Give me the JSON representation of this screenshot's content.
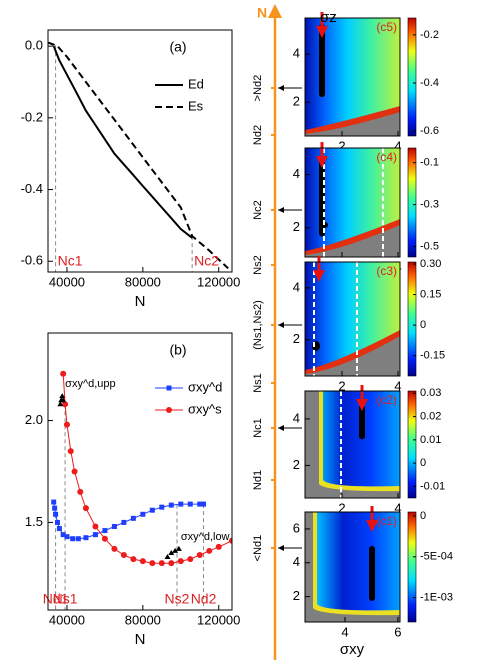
{
  "chart_data": [
    {
      "type": "line",
      "title": "(a)",
      "xlabel": "N",
      "xlim": [
        30000,
        127000
      ],
      "ylim": [
        -0.63,
        0.045
      ],
      "xticks": [
        40000,
        80000,
        120000
      ],
      "yticks": [
        {
          "value": 0,
          "label": "0.0"
        },
        -0.2,
        -0.4,
        -0.6
      ],
      "series": [
        {
          "name": "Ed",
          "color": "#000000",
          "line_style": "solid",
          "x": [
            33000,
            36000,
            40000,
            45000,
            50000,
            55000,
            60000,
            65000,
            70000,
            75000,
            80000,
            85000,
            90000,
            95000,
            100000,
            106000
          ],
          "values": [
            0,
            -0.04,
            -0.08,
            -0.13,
            -0.18,
            -0.22,
            -0.26,
            -0.3,
            -0.33,
            -0.36,
            -0.39,
            -0.42,
            -0.45,
            -0.48,
            -0.51,
            -0.535
          ]
        },
        {
          "name": "Es",
          "color": "#000000",
          "line_style": "dashed",
          "x": [
            30000,
            35000,
            40000,
            50000,
            60000,
            70000,
            80000,
            90000,
            100000,
            106000,
            115000,
            125000
          ],
          "values": [
            0.01,
            0,
            -0.03,
            -0.1,
            -0.17,
            -0.24,
            -0.31,
            -0.38,
            -0.45,
            -0.53,
            -0.57,
            -0.62
          ]
        }
      ],
      "vlines": [
        {
          "x": 34000,
          "label": "Nc1"
        },
        {
          "x": 106000,
          "label": "Nc2"
        }
      ]
    },
    {
      "type": "line",
      "title": "(b)",
      "xlabel": "N",
      "xlim": [
        30000,
        127000
      ],
      "ylim": [
        1.07,
        2.43
      ],
      "xticks": [
        40000,
        80000,
        120000
      ],
      "yticks": [
        1.5,
        {
          "value": 2,
          "label": "2.0"
        }
      ],
      "series": [
        {
          "name": "σxy^d",
          "color": "#1f3fff",
          "marker": "square",
          "x": [
            33000,
            33500,
            34000,
            35000,
            36000,
            38000,
            40000,
            43000,
            46000,
            50000,
            55000,
            60000,
            65000,
            70000,
            75000,
            80000,
            85000,
            90000,
            95000,
            100000,
            105000,
            110000,
            112000
          ],
          "values": [
            1.6,
            1.57,
            1.54,
            1.5,
            1.47,
            1.44,
            1.43,
            1.42,
            1.42,
            1.425,
            1.44,
            1.46,
            1.48,
            1.5,
            1.52,
            1.54,
            1.56,
            1.575,
            1.585,
            1.59,
            1.59,
            1.59,
            1.59
          ]
        },
        {
          "name": "σxy^s",
          "color": "#ee1c1c",
          "marker": "circle",
          "x": [
            38000,
            39000,
            40000,
            42000,
            44000,
            47000,
            50000,
            55000,
            60000,
            65000,
            70000,
            75000,
            80000,
            85000,
            90000,
            95000,
            100000,
            105000,
            110000,
            115000,
            120000,
            127000
          ],
          "values": [
            2.23,
            2.08,
            1.98,
            1.85,
            1.75,
            1.65,
            1.57,
            1.48,
            1.42,
            1.37,
            1.34,
            1.32,
            1.31,
            1.3,
            1.3,
            1.3,
            1.31,
            1.32,
            1.34,
            1.36,
            1.38,
            1.41
          ]
        }
      ],
      "triangle_points": [
        {
          "label": "σxy^d,upp",
          "x": [
            36500,
            37000,
            37500,
            38000
          ],
          "values": [
            2.08,
            2.1,
            2.12,
            2.1
          ]
        },
        {
          "label": "σxy^d,low",
          "x": [
            93000,
            95000,
            97000,
            99000
          ],
          "values": [
            1.33,
            1.35,
            1.36,
            1.37
          ]
        }
      ],
      "vlines": [
        {
          "x": 34000,
          "label": "Nd1"
        },
        {
          "x": 39000,
          "label": "Ns1"
        },
        {
          "x": 98000,
          "label": "Ns2"
        },
        {
          "x": 112000,
          "label": "Nd2"
        }
      ]
    },
    {
      "type": "heatmap",
      "title": "(c5)",
      "xlim": [
        0.68,
        4.07
      ],
      "ylim": [
        0.6,
        5.5
      ],
      "xticks": [
        2,
        4
      ],
      "yticks": [
        2,
        4
      ],
      "clim": [
        -0.62,
        -0.13
      ],
      "cticks": [
        -0.2,
        -0.4,
        -0.6
      ]
    },
    {
      "type": "heatmap",
      "title": "(c4)",
      "xlim": [
        0.68,
        4.07
      ],
      "ylim": [
        0.9,
        5.0
      ],
      "xticks": [
        2,
        4
      ],
      "yticks": [
        2,
        4
      ],
      "clim": [
        -0.55,
        -0.03
      ],
      "cticks": [
        -0.1,
        -0.3,
        -0.5
      ]
    },
    {
      "type": "heatmap",
      "title": "(c3)",
      "xlim": [
        0.68,
        4.07
      ],
      "ylim": [
        0.6,
        5.0
      ],
      "xticks": [
        2,
        4
      ],
      "yticks": [
        2,
        4
      ],
      "clim": [
        -0.25,
        0.31
      ],
      "cticks": [
        {
          "value": 0.3,
          "label": "0.30"
        },
        0.15,
        0,
        -0.15
      ]
    },
    {
      "type": "heatmap",
      "title": "(c2)",
      "xlim": [
        0.68,
        4.07
      ],
      "ylim": [
        0.6,
        5.2
      ],
      "xticks": [
        2,
        4
      ],
      "yticks": [
        2,
        4
      ],
      "clim": [
        -0.015,
        0.031
      ],
      "cticks": [
        0.03,
        0.02,
        0.01,
        0,
        -0.01
      ]
    },
    {
      "type": "heatmap",
      "title": "(c1)",
      "xlim": [
        2.49,
        6.08
      ],
      "ylim": [
        0.5,
        7.0
      ],
      "xticks": [
        4,
        6
      ],
      "yticks": [
        2,
        4,
        6
      ],
      "clim": [
        -0.0013,
        5e-05
      ],
      "cticks": [
        0,
        {
          "value": -0.0005,
          "label": "-5E-04"
        },
        {
          "value": -0.001,
          "label": "-1E-03"
        }
      ]
    }
  ],
  "heatmap_axes": {
    "xlabel": "σxy",
    "ylabel": "σz"
  },
  "n_axis": {
    "label": "N",
    "marks": [
      ">Nd2",
      "Nd2",
      "Nc2",
      "Ns2",
      "(Ns1,Ns2)",
      "Ns1",
      "Nc1",
      "Nd1",
      "<Nd1"
    ]
  }
}
